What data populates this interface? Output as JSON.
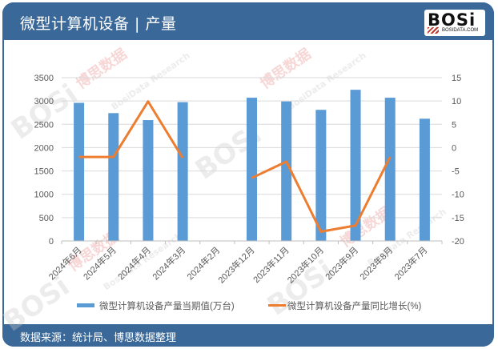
{
  "header": {
    "title": "微型计算机设备 | 产量",
    "logo_mark": "BOSi",
    "logo_sub": "BOSIDATA.COM"
  },
  "footer": {
    "source": "数据来源：统计局、博思数据整理"
  },
  "watermark": {
    "brand": "BOSi",
    "cn": "博思数据",
    "en": "BosiData Research"
  },
  "colors": {
    "frame": "#3a6899",
    "bar": "#5b9bd5",
    "line": "#ed7d31",
    "grid": "#d9d9d9",
    "axis_text": "#595959"
  },
  "chart_data": {
    "type": "bar+line",
    "title": "微型计算机设备 | 产量",
    "categories": [
      "2024年6月",
      "2024年5月",
      "2024年4月",
      "2024年3月",
      "2024年2月",
      "2023年12月",
      "2023年11月",
      "2023年10月",
      "2023年9月",
      "2023年8月",
      "2023年7月"
    ],
    "series": [
      {
        "name": "微型计算机设备产量当期值(万台)",
        "type": "bar",
        "axis": "left",
        "values": [
          2960,
          2740,
          2590,
          2975,
          null,
          3070,
          2990,
          2810,
          3240,
          3070,
          2620
        ]
      },
      {
        "name": "微型计算机设备产量同比增长(%)",
        "type": "line",
        "axis": "right",
        "values": [
          -2.0,
          -2.0,
          9.9,
          -2.2,
          null,
          -6.5,
          -3.0,
          -18.0,
          -16.7,
          -2.0,
          null
        ]
      }
    ],
    "left_axis": {
      "min": 0,
      "max": 3500,
      "step": 500,
      "ticks": [
        "0",
        "500",
        "1000",
        "1500",
        "2000",
        "2500",
        "3000",
        "3500"
      ]
    },
    "right_axis": {
      "min": -20,
      "max": 15,
      "step": 5,
      "ticks": [
        "-20",
        "-15",
        "-10",
        "-5",
        "0",
        "5",
        "10",
        "15"
      ]
    },
    "xlabel": "",
    "ylabel": "",
    "grid": true,
    "legend_position": "bottom"
  }
}
